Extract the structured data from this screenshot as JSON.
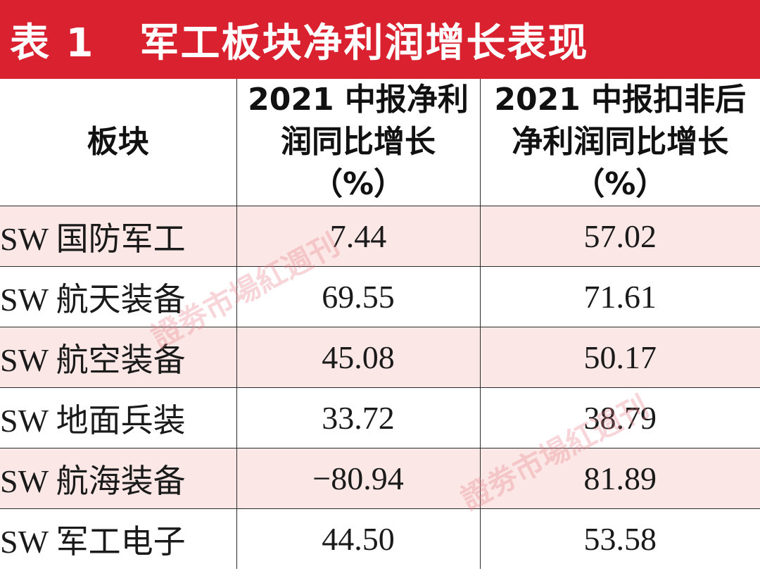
{
  "title": {
    "label": "表 1",
    "text": "军工板块净利润增长表现"
  },
  "colors": {
    "title_bg": "#d9212f",
    "row_shade": "#fbe8e6",
    "watermark": "#e7808a"
  },
  "table": {
    "headers": [
      [
        "板块"
      ],
      [
        "2021 中报净利",
        "润同比增长",
        "（%）"
      ],
      [
        "2021 中报扣非后",
        "净利润同比增长",
        "（%）"
      ]
    ],
    "rows": [
      [
        "SW 国防军工",
        "7.44",
        "57.02"
      ],
      [
        "SW 航天装备",
        "69.55",
        "71.61"
      ],
      [
        "SW 航空装备",
        "45.08",
        "50.17"
      ],
      [
        "SW 地面兵装",
        "33.72",
        "38.79"
      ],
      [
        "SW 航海装备",
        "−80.94",
        "81.89"
      ],
      [
        "SW 军工电子",
        "44.50",
        "53.58"
      ]
    ]
  },
  "watermark": {
    "text": "證劵市場紅週刊"
  }
}
